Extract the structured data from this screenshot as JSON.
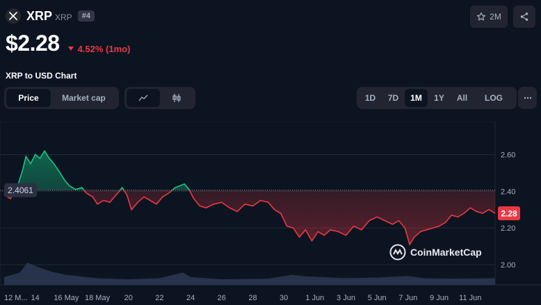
{
  "coin": {
    "name": "XRP",
    "symbol": "XRP",
    "rank": "#4",
    "logo_icon": "xrp-logo-icon"
  },
  "watchlist": {
    "count": "2M",
    "icon": "star-icon"
  },
  "share": {
    "icon": "share-icon"
  },
  "price": {
    "value": "$2.28",
    "change": "4.52% (1mo)",
    "change_color": "#ea3943",
    "direction_icon": "caret-down-icon"
  },
  "chart_title": "XRP to USD Chart",
  "chart_toggle": {
    "options": [
      "Price",
      "Market cap"
    ],
    "selected": "Price"
  },
  "chart_style": {
    "options": [
      "line-chart-icon",
      "candlestick-icon"
    ],
    "selected": "line-chart-icon"
  },
  "ranges": {
    "options": [
      "1D",
      "7D",
      "1M",
      "1Y",
      "All",
      "LOG"
    ],
    "selected": "1M",
    "more_icon": "more-icon"
  },
  "watermark": "CoinMarketCap",
  "colors": {
    "up": "#16c784",
    "down": "#ea3943",
    "background": "#0d1421",
    "accent": "#3861fb"
  },
  "chart_data": {
    "type": "line",
    "y_ticks": [
      "2.60",
      "2.40",
      "2.20",
      "2.00"
    ],
    "ylim": [
      1.89,
      2.78
    ],
    "reference_value": 2.4061,
    "reference_label": "2.4061",
    "current_value": 2.28,
    "current_label": "2.28",
    "x_tick_labels": [
      "12 M...",
      "14",
      "16 May",
      "18 May",
      "20",
      "22",
      "24",
      "26",
      "28",
      "30",
      "1 Jun",
      "3 Jun",
      "5 Jun",
      "7 Jun",
      "9 Jun",
      "11 Jun"
    ],
    "x_tick_days": [
      0,
      2,
      4,
      6,
      8,
      10,
      12,
      14,
      16,
      18,
      20,
      22,
      24,
      26,
      28,
      30
    ],
    "x_range_days": [
      0,
      31.6
    ],
    "series": [
      {
        "points": [
          [
            0,
            2.38
          ],
          [
            0.4,
            2.36
          ],
          [
            0.8,
            2.41
          ],
          [
            1.2,
            2.52
          ],
          [
            1.4,
            2.59
          ],
          [
            1.7,
            2.55
          ],
          [
            2.0,
            2.6
          ],
          [
            2.3,
            2.58
          ],
          [
            2.6,
            2.62
          ],
          [
            2.9,
            2.58
          ],
          [
            3.2,
            2.55
          ],
          [
            3.6,
            2.5
          ],
          [
            3.9,
            2.46
          ],
          [
            4.2,
            2.43
          ],
          [
            4.6,
            2.41
          ],
          [
            5.0,
            2.42
          ],
          [
            5.3,
            2.39
          ],
          [
            5.7,
            2.37
          ],
          [
            6.0,
            2.33
          ],
          [
            6.4,
            2.35
          ],
          [
            6.8,
            2.34
          ],
          [
            7.2,
            2.38
          ],
          [
            7.6,
            2.42
          ],
          [
            7.9,
            2.38
          ],
          [
            8.2,
            2.3
          ],
          [
            8.6,
            2.34
          ],
          [
            9.0,
            2.37
          ],
          [
            9.4,
            2.35
          ],
          [
            9.8,
            2.33
          ],
          [
            10.2,
            2.37
          ],
          [
            10.6,
            2.39
          ],
          [
            11.0,
            2.42
          ],
          [
            11.3,
            2.43
          ],
          [
            11.6,
            2.44
          ],
          [
            11.9,
            2.41
          ],
          [
            12.2,
            2.36
          ],
          [
            12.6,
            2.32
          ],
          [
            13.0,
            2.31
          ],
          [
            13.5,
            2.33
          ],
          [
            14.0,
            2.34
          ],
          [
            14.5,
            2.31
          ],
          [
            15.0,
            2.29
          ],
          [
            15.5,
            2.33
          ],
          [
            16.0,
            2.32
          ],
          [
            16.5,
            2.35
          ],
          [
            17.0,
            2.34
          ],
          [
            17.4,
            2.3
          ],
          [
            17.8,
            2.28
          ],
          [
            18.2,
            2.21
          ],
          [
            18.6,
            2.2
          ],
          [
            19.0,
            2.15
          ],
          [
            19.4,
            2.19
          ],
          [
            19.8,
            2.13
          ],
          [
            20.2,
            2.18
          ],
          [
            20.6,
            2.16
          ],
          [
            21.0,
            2.19
          ],
          [
            21.5,
            2.18
          ],
          [
            22.0,
            2.16
          ],
          [
            22.5,
            2.21
          ],
          [
            23.0,
            2.19
          ],
          [
            23.5,
            2.24
          ],
          [
            24.0,
            2.26
          ],
          [
            24.5,
            2.24
          ],
          [
            25.0,
            2.22
          ],
          [
            25.4,
            2.24
          ],
          [
            25.8,
            2.2
          ],
          [
            26.1,
            2.11
          ],
          [
            26.4,
            2.15
          ],
          [
            26.8,
            2.18
          ],
          [
            27.2,
            2.19
          ],
          [
            27.6,
            2.2
          ],
          [
            28.0,
            2.21
          ],
          [
            28.4,
            2.23
          ],
          [
            28.8,
            2.27
          ],
          [
            29.2,
            2.26
          ],
          [
            29.6,
            2.28
          ],
          [
            30.0,
            2.31
          ],
          [
            30.4,
            2.29
          ],
          [
            30.8,
            2.28
          ],
          [
            31.2,
            2.3
          ],
          [
            31.6,
            2.28
          ]
        ]
      }
    ],
    "volume_series": [
      [
        0,
        0.35
      ],
      [
        1.0,
        0.55
      ],
      [
        1.5,
        1.0
      ],
      [
        2.0,
        0.85
      ],
      [
        3.0,
        0.6
      ],
      [
        4.0,
        0.45
      ],
      [
        6.0,
        0.3
      ],
      [
        8.0,
        0.25
      ],
      [
        10.0,
        0.3
      ],
      [
        11.5,
        0.55
      ],
      [
        12.0,
        0.35
      ],
      [
        14.0,
        0.25
      ],
      [
        17.0,
        0.28
      ],
      [
        18.5,
        0.45
      ],
      [
        19.5,
        0.38
      ],
      [
        22.0,
        0.3
      ],
      [
        24.0,
        0.33
      ],
      [
        26.0,
        0.4
      ],
      [
        27.0,
        0.3
      ],
      [
        29.0,
        0.28
      ],
      [
        31.6,
        0.3
      ]
    ],
    "grid": true
  }
}
